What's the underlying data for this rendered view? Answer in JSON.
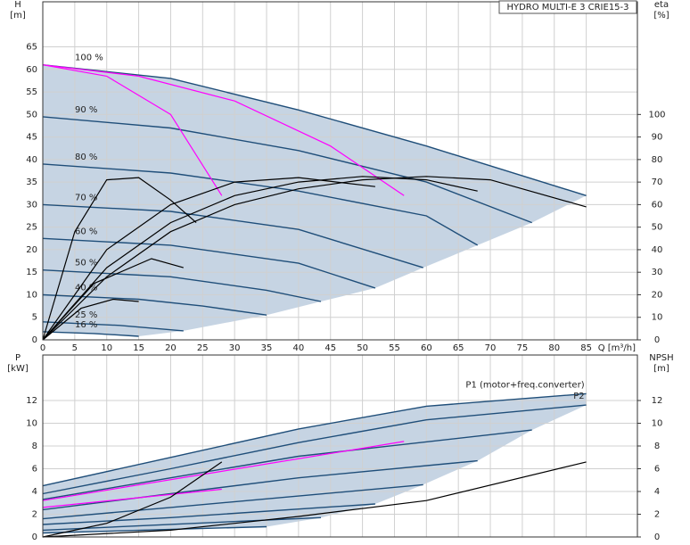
{
  "chart_data": [
    {
      "type": "line",
      "title": "HYDRO MULTI-E 3 CRIE15-3",
      "y_label": "H",
      "y_unit": "[m]",
      "y2_label": "eta",
      "y2_unit": "[%]",
      "x_label": "Q [m³/h]",
      "xlim": [
        0,
        93
      ],
      "xticks": [
        0,
        5,
        10,
        15,
        20,
        25,
        30,
        35,
        40,
        45,
        50,
        55,
        60,
        65,
        70,
        75,
        80,
        85
      ],
      "ylim": [
        0,
        75
      ],
      "yticks": [
        0,
        5,
        10,
        15,
        20,
        25,
        30,
        35,
        40,
        45,
        50,
        55,
        60,
        65
      ],
      "y2lim": [
        0,
        150
      ],
      "y2ticks": [
        0,
        10,
        20,
        30,
        40,
        50,
        60,
        70,
        80,
        90,
        100
      ],
      "grid": true,
      "series": [
        {
          "name": "100 %",
          "color": "#1f4e79",
          "x": [
            0,
            20,
            40,
            60,
            85
          ],
          "values": [
            61,
            58,
            51,
            43,
            32
          ]
        },
        {
          "name": "90 %",
          "color": "#1f4e79",
          "x": [
            0,
            20,
            40,
            60,
            76.5
          ],
          "values": [
            49.5,
            47,
            42,
            35,
            26
          ]
        },
        {
          "name": "80 %",
          "color": "#1f4e79",
          "x": [
            0,
            20,
            40,
            60,
            68
          ],
          "values": [
            39,
            37,
            33,
            27.5,
            21
          ]
        },
        {
          "name": "70 %",
          "color": "#1f4e79",
          "x": [
            0,
            20,
            40,
            59.5
          ],
          "values": [
            30,
            28.5,
            24.5,
            16
          ]
        },
        {
          "name": "60 %",
          "color": "#1f4e79",
          "x": [
            0,
            20,
            40,
            52
          ],
          "values": [
            22.5,
            21,
            17,
            11.5
          ]
        },
        {
          "name": "50 %",
          "color": "#1f4e79",
          "x": [
            0,
            20,
            35,
            43.5
          ],
          "values": [
            15.5,
            14,
            11,
            8.5
          ]
        },
        {
          "name": "40 %",
          "color": "#1f4e79",
          "x": [
            0,
            15,
            25,
            35
          ],
          "values": [
            10,
            9,
            7.5,
            5.5
          ]
        },
        {
          "name": "25 %",
          "color": "#1f4e79",
          "x": [
            0,
            12,
            22
          ],
          "values": [
            4,
            3.2,
            2
          ]
        },
        {
          "name": "16 %",
          "color": "#1f4e79",
          "x": [
            0,
            8,
            15
          ],
          "values": [
            1.8,
            1.4,
            0.8
          ]
        },
        {
          "color": "#ff00ff",
          "x": [
            0,
            15,
            30,
            45,
            56.5
          ],
          "values": [
            61,
            58.5,
            53,
            43,
            32
          ]
        },
        {
          "color": "#ff00ff",
          "x": [
            0,
            10,
            20,
            28
          ],
          "values": [
            61,
            58.5,
            50,
            32
          ]
        },
        {
          "color": "#000000",
          "axis": "y2",
          "x": [
            0,
            10,
            20,
            30,
            40,
            50,
            60,
            70,
            85
          ],
          "values": [
            0,
            28,
            48,
            60,
            67,
            71,
            72.5,
            71,
            59
          ]
        },
        {
          "color": "#000000",
          "axis": "y2",
          "x": [
            0,
            10,
            20,
            30,
            40,
            50,
            60,
            68
          ],
          "values": [
            0,
            32,
            52,
            64,
            70,
            72.5,
            71,
            66
          ]
        },
        {
          "color": "#000000",
          "axis": "y2",
          "x": [
            0,
            10,
            20,
            30,
            40,
            52
          ],
          "values": [
            0,
            40,
            60,
            70,
            72,
            68
          ]
        },
        {
          "color": "#000000",
          "axis": "y2",
          "x": [
            0,
            5,
            10,
            15,
            20,
            24
          ],
          "values": [
            0,
            48,
            71,
            72,
            62,
            52
          ]
        },
        {
          "color": "#000000",
          "axis": "y2",
          "x": [
            0,
            8,
            17,
            22
          ],
          "values": [
            0,
            25,
            36,
            32
          ]
        },
        {
          "color": "#000000",
          "axis": "y2",
          "x": [
            0,
            6,
            11,
            15
          ],
          "values": [
            0,
            14,
            18,
            17
          ]
        }
      ]
    },
    {
      "type": "line",
      "y_label": "P",
      "y_unit": "[kW]",
      "y2_label": "NPSH",
      "y2_unit": "[m]",
      "xlim": [
        0,
        93
      ],
      "ylim": [
        0,
        16
      ],
      "yticks": [
        0,
        2,
        4,
        6,
        8,
        10,
        12
      ],
      "y2lim": [
        0,
        16
      ],
      "y2ticks": [
        0,
        2,
        4,
        6,
        8,
        10,
        12
      ],
      "grid": true,
      "series": [
        {
          "name": "P1 (motor+freq.converter)",
          "color": "#1f4e79",
          "x": [
            0,
            20,
            40,
            60,
            85
          ],
          "values": [
            4.5,
            7,
            9.5,
            11.5,
            12.6
          ]
        },
        {
          "name": "P2",
          "color": "#1f4e79",
          "x": [
            0,
            20,
            40,
            60,
            85
          ],
          "values": [
            3.8,
            6,
            8.3,
            10.3,
            11.6
          ]
        },
        {
          "color": "#1f4e79",
          "x": [
            0,
            20,
            40,
            76.5
          ],
          "values": [
            3.3,
            5.2,
            7.1,
            9.4
          ]
        },
        {
          "color": "#1f4e79",
          "x": [
            0,
            20,
            40,
            68
          ],
          "values": [
            2.4,
            3.8,
            5.2,
            6.7
          ]
        },
        {
          "color": "#1f4e79",
          "x": [
            0,
            20,
            40,
            59.5
          ],
          "values": [
            1.6,
            2.6,
            3.6,
            4.6
          ]
        },
        {
          "color": "#1f4e79",
          "x": [
            0,
            20,
            52
          ],
          "values": [
            1.1,
            1.7,
            2.9
          ]
        },
        {
          "color": "#1f4e79",
          "x": [
            0,
            43.5
          ],
          "values": [
            0.6,
            1.7
          ]
        },
        {
          "color": "#1f4e79",
          "x": [
            0,
            35
          ],
          "values": [
            0.35,
            0.9
          ]
        },
        {
          "color": "#ff00ff",
          "x": [
            0,
            28
          ],
          "values": [
            2.6,
            4.2
          ]
        },
        {
          "color": "#ff00ff",
          "x": [
            0,
            56.5
          ],
          "values": [
            3.2,
            8.4
          ]
        },
        {
          "color": "#000000",
          "axis": "y2",
          "x": [
            0,
            20,
            40,
            60,
            85
          ],
          "values": [
            0,
            0.6,
            1.8,
            3.2,
            6.6
          ]
        },
        {
          "color": "#000000",
          "axis": "y2",
          "x": [
            0,
            10,
            20,
            28
          ],
          "values": [
            0,
            1.2,
            3.5,
            6.6
          ]
        }
      ]
    }
  ]
}
